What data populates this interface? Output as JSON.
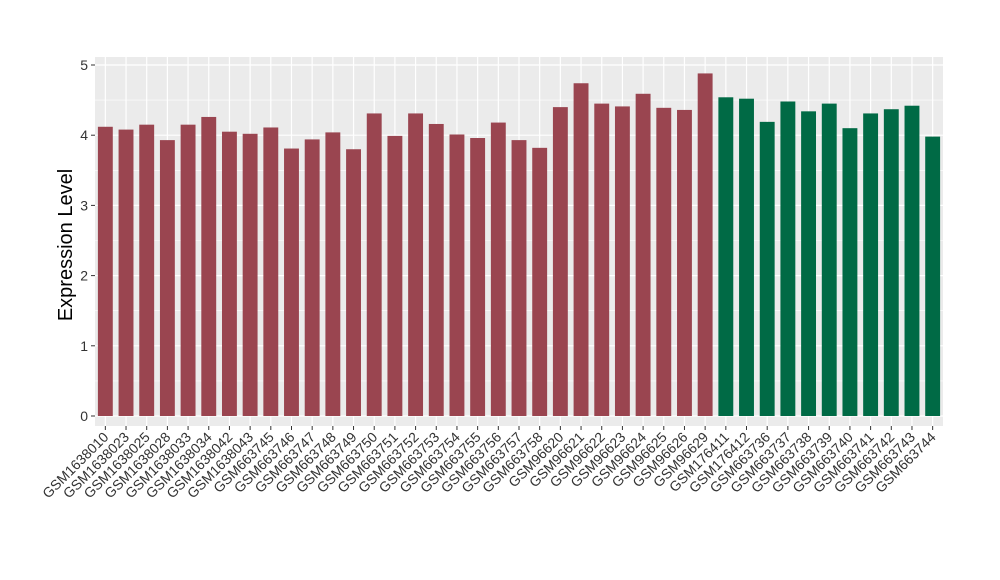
{
  "chart_data": {
    "type": "bar",
    "title": "",
    "xlabel": "",
    "ylabel": "Expression Level",
    "ylim": [
      0,
      5.1
    ],
    "yticks": [
      0,
      1,
      2,
      3,
      4,
      5
    ],
    "grid": true,
    "legend": "none",
    "colors": {
      "group1": "#9a4550",
      "group2": "#006a45",
      "panel": "#ebebeb",
      "grid": "#ffffff"
    },
    "categories": [
      "GSM1638010",
      "GSM1638023",
      "GSM1638025",
      "GSM1638028",
      "GSM1638033",
      "GSM1638034",
      "GSM1638042",
      "GSM1638043",
      "GSM663745",
      "GSM663746",
      "GSM663747",
      "GSM663748",
      "GSM663749",
      "GSM663750",
      "GSM663751",
      "GSM663752",
      "GSM663753",
      "GSM663754",
      "GSM663755",
      "GSM663756",
      "GSM663757",
      "GSM663758",
      "GSM96620",
      "GSM96621",
      "GSM96622",
      "GSM96623",
      "GSM96624",
      "GSM96625",
      "GSM96626",
      "GSM96629",
      "GSM176411",
      "GSM176412",
      "GSM663736",
      "GSM663737",
      "GSM663738",
      "GSM663739",
      "GSM663740",
      "GSM663741",
      "GSM663742",
      "GSM663743",
      "GSM663744"
    ],
    "values": [
      4.12,
      4.08,
      4.15,
      3.93,
      4.15,
      4.26,
      4.05,
      4.02,
      4.11,
      3.81,
      3.94,
      4.04,
      3.8,
      4.31,
      3.99,
      4.31,
      4.16,
      4.01,
      3.96,
      4.18,
      3.93,
      3.82,
      4.4,
      4.74,
      4.45,
      4.41,
      4.59,
      4.39,
      4.36,
      4.88,
      4.54,
      4.52,
      4.19,
      4.48,
      4.34,
      4.45,
      4.1,
      4.31,
      4.37,
      4.42,
      3.98
    ],
    "groups": [
      1,
      1,
      1,
      1,
      1,
      1,
      1,
      1,
      1,
      1,
      1,
      1,
      1,
      1,
      1,
      1,
      1,
      1,
      1,
      1,
      1,
      1,
      1,
      1,
      1,
      1,
      1,
      1,
      1,
      1,
      2,
      2,
      2,
      2,
      2,
      2,
      2,
      2,
      2,
      2,
      2
    ]
  }
}
